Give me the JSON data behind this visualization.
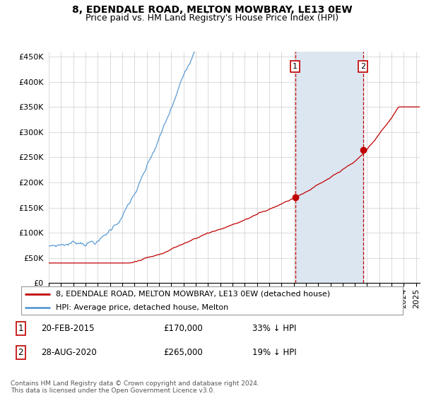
{
  "title": "8, EDENDALE ROAD, MELTON MOWBRAY, LE13 0EW",
  "subtitle": "Price paid vs. HM Land Registry's House Price Index (HPI)",
  "ylim": [
    0,
    460000
  ],
  "yticks": [
    0,
    50000,
    100000,
    150000,
    200000,
    250000,
    300000,
    350000,
    400000,
    450000
  ],
  "ytick_labels": [
    "£0",
    "£50K",
    "£100K",
    "£150K",
    "£200K",
    "£250K",
    "£300K",
    "£350K",
    "£400K",
    "£450K"
  ],
  "xlim_start": 1995.0,
  "xlim_end": 2025.3,
  "sale1_date": 2015.12,
  "sale1_price": 170000,
  "sale2_date": 2020.66,
  "sale2_price": 265000,
  "hpi_color": "#5b9bd5",
  "house_color": "#c00000",
  "shaded_color": "#dce6f1",
  "legend_house": "8, EDENDALE ROAD, MELTON MOWBRAY, LE13 0EW (detached house)",
  "legend_hpi": "HPI: Average price, detached house, Melton",
  "footnote": "Contains HM Land Registry data © Crown copyright and database right 2024.\nThis data is licensed under the Open Government Licence v3.0.",
  "title_fontsize": 10,
  "subtitle_fontsize": 9,
  "tick_fontsize": 8,
  "legend_fontsize": 8,
  "annot_fontsize": 8.5
}
